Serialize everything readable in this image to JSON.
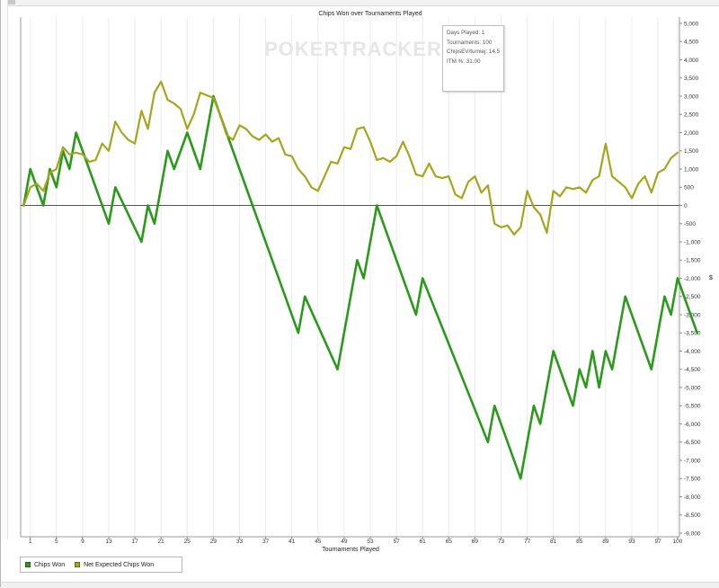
{
  "chart_data": {
    "type": "line",
    "title": "Chips Won over Tournaments Played",
    "xlabel": "Tournaments Played",
    "ylabel": "$",
    "xlim": [
      0,
      100
    ],
    "ylim": [
      -9000,
      5000
    ],
    "x_ticks": [
      1,
      5,
      9,
      13,
      17,
      21,
      25,
      29,
      33,
      37,
      41,
      45,
      49,
      53,
      57,
      61,
      65,
      69,
      73,
      77,
      81,
      85,
      89,
      93,
      97,
      100
    ],
    "y_ticks": [
      5000,
      4500,
      4000,
      3500,
      3000,
      2500,
      2000,
      1500,
      1000,
      500,
      0,
      -500,
      -1000,
      -1500,
      -2000,
      -2500,
      -3000,
      -3500,
      -4000,
      -4500,
      -5000,
      -5500,
      -6000,
      -6500,
      -7000,
      -7500,
      -8000,
      -8500,
      -9000
    ],
    "y_tick_labels": [
      "5,000",
      "4,500",
      "4,000",
      "3,500",
      "3,000",
      "2,500",
      "2,000",
      "1,500",
      "1,000",
      "500",
      "0",
      "-500",
      "-1,000",
      "-1,500",
      "-2,000",
      "-2,500",
      "-3,000",
      "-3,500",
      "-4,000",
      "-4,500",
      "-5,000",
      "-5,500",
      "-6,000",
      "-6,500",
      "-7,000",
      "-7,500",
      "-8,000",
      "-8,500",
      "-9,000"
    ],
    "grid": "vertical",
    "legend": "bottom-left",
    "watermark": "POKERTRACKER",
    "series": [
      {
        "name": "Chips Won",
        "color": "#2a9a1a",
        "points": [
          [
            0,
            0
          ],
          [
            1,
            1000
          ],
          [
            3,
            0
          ],
          [
            4,
            1000
          ],
          [
            5,
            500
          ],
          [
            6,
            1500
          ],
          [
            7,
            1000
          ],
          [
            8,
            2000
          ],
          [
            13,
            -500
          ],
          [
            14,
            500
          ],
          [
            18,
            -1000
          ],
          [
            19,
            0
          ],
          [
            20,
            -500
          ],
          [
            22,
            1500
          ],
          [
            23,
            1000
          ],
          [
            25,
            2000
          ],
          [
            27,
            1000
          ],
          [
            29,
            3000
          ],
          [
            42,
            -3500
          ],
          [
            43,
            -2500
          ],
          [
            48,
            -4500
          ],
          [
            51,
            -1500
          ],
          [
            52,
            -2000
          ],
          [
            54,
            0
          ],
          [
            60,
            -3000
          ],
          [
            61,
            -2000
          ],
          [
            71,
            -6500
          ],
          [
            72,
            -5500
          ],
          [
            76,
            -7500
          ],
          [
            78,
            -5500
          ],
          [
            79,
            -6000
          ],
          [
            81,
            -4000
          ],
          [
            84,
            -5500
          ],
          [
            85,
            -4500
          ],
          [
            86,
            -5000
          ],
          [
            87,
            -4000
          ],
          [
            88,
            -5000
          ],
          [
            89,
            -4000
          ],
          [
            90,
            -4500
          ],
          [
            92,
            -2500
          ],
          [
            96,
            -4500
          ],
          [
            98,
            -2500
          ],
          [
            99,
            -3000
          ],
          [
            100,
            -2000
          ],
          [
            103,
            -3500
          ]
        ]
      },
      {
        "name": "Net Expected Chips Won",
        "color": "#a6a51c",
        "points": [
          [
            0,
            0
          ],
          [
            1,
            500
          ],
          [
            2,
            600
          ],
          [
            3,
            400
          ],
          [
            4,
            900
          ],
          [
            5,
            1000
          ],
          [
            6,
            1600
          ],
          [
            7,
            1400
          ],
          [
            8,
            1450
          ],
          [
            9,
            1400
          ],
          [
            10,
            1200
          ],
          [
            11,
            1250
          ],
          [
            12,
            1700
          ],
          [
            13,
            1500
          ],
          [
            14,
            2300
          ],
          [
            15,
            2000
          ],
          [
            16,
            1800
          ],
          [
            17,
            1700
          ],
          [
            18,
            2600
          ],
          [
            19,
            2100
          ],
          [
            20,
            3100
          ],
          [
            21,
            3400
          ],
          [
            22,
            2900
          ],
          [
            23,
            2800
          ],
          [
            24,
            2650
          ],
          [
            25,
            2100
          ],
          [
            26,
            2500
          ],
          [
            27,
            3100
          ],
          [
            29,
            2950
          ],
          [
            30,
            2500
          ],
          [
            31,
            1950
          ],
          [
            32,
            1800
          ],
          [
            33,
            2200
          ],
          [
            34,
            2100
          ],
          [
            35,
            1900
          ],
          [
            36,
            1800
          ],
          [
            37,
            1950
          ],
          [
            38,
            1750
          ],
          [
            39,
            1850
          ],
          [
            40,
            1400
          ],
          [
            41,
            1350
          ],
          [
            42,
            1000
          ],
          [
            43,
            800
          ],
          [
            44,
            500
          ],
          [
            45,
            400
          ],
          [
            46,
            800
          ],
          [
            47,
            1200
          ],
          [
            48,
            1150
          ],
          [
            49,
            1600
          ],
          [
            50,
            1550
          ],
          [
            51,
            2100
          ],
          [
            52,
            2150
          ],
          [
            53,
            1750
          ],
          [
            54,
            1250
          ],
          [
            55,
            1300
          ],
          [
            56,
            1200
          ],
          [
            57,
            1350
          ],
          [
            58,
            1750
          ],
          [
            59,
            1350
          ],
          [
            60,
            850
          ],
          [
            61,
            800
          ],
          [
            62,
            1150
          ],
          [
            63,
            800
          ],
          [
            64,
            750
          ],
          [
            65,
            800
          ],
          [
            66,
            300
          ],
          [
            67,
            200
          ],
          [
            68,
            650
          ],
          [
            69,
            800
          ],
          [
            70,
            350
          ],
          [
            71,
            550
          ],
          [
            72,
            -500
          ],
          [
            73,
            -600
          ],
          [
            74,
            -550
          ],
          [
            75,
            -800
          ],
          [
            76,
            -600
          ],
          [
            77,
            400
          ],
          [
            78,
            -50
          ],
          [
            79,
            -250
          ],
          [
            80,
            -750
          ],
          [
            81,
            400
          ],
          [
            82,
            250
          ],
          [
            83,
            500
          ],
          [
            84,
            450
          ],
          [
            85,
            500
          ],
          [
            86,
            350
          ],
          [
            87,
            700
          ],
          [
            88,
            800
          ],
          [
            89,
            1700
          ],
          [
            90,
            800
          ],
          [
            91,
            650
          ],
          [
            92,
            500
          ],
          [
            93,
            200
          ],
          [
            94,
            600
          ],
          [
            95,
            800
          ],
          [
            96,
            350
          ],
          [
            97,
            900
          ],
          [
            98,
            1000
          ],
          [
            99,
            1300
          ],
          [
            100,
            1450
          ]
        ]
      }
    ]
  },
  "tooltip": {
    "lines": [
      "Days Played: 1",
      "Tournaments: 100",
      "ChipsEV/turniej: 14.5",
      "ITM %: 31.00"
    ]
  },
  "legend": {
    "items": [
      {
        "label": "Chips Won",
        "color": "#2a9a1a"
      },
      {
        "label": "Net Expected Chips Won",
        "color": "#a6a51c"
      }
    ]
  }
}
